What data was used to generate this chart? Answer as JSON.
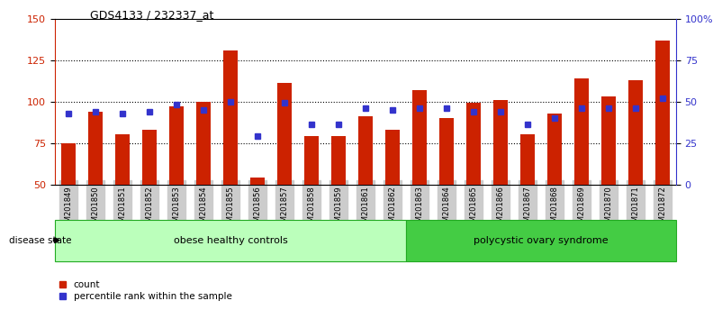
{
  "title": "GDS4133 / 232337_at",
  "samples": [
    "GSM201849",
    "GSM201850",
    "GSM201851",
    "GSM201852",
    "GSM201853",
    "GSM201854",
    "GSM201855",
    "GSM201856",
    "GSM201857",
    "GSM201858",
    "GSM201859",
    "GSM201861",
    "GSM201862",
    "GSM201863",
    "GSM201864",
    "GSM201865",
    "GSM201866",
    "GSM201867",
    "GSM201868",
    "GSM201869",
    "GSM201870",
    "GSM201871",
    "GSM201872"
  ],
  "counts": [
    75,
    94,
    80,
    83,
    97,
    100,
    131,
    54,
    111,
    79,
    79,
    91,
    83,
    107,
    90,
    99,
    101,
    80,
    93,
    114,
    103,
    113,
    137
  ],
  "percentiles": [
    43,
    44,
    43,
    44,
    48,
    45,
    50,
    29,
    49,
    36,
    36,
    46,
    45,
    46,
    46,
    44,
    44,
    36,
    40,
    46,
    46,
    46,
    52
  ],
  "group1_label": "obese healthy controls",
  "group2_label": "polycystic ovary syndrome",
  "group1_count": 13,
  "group2_count": 10,
  "ylim_left": [
    50,
    150
  ],
  "ylim_right": [
    0,
    100
  ],
  "yticks_left": [
    50,
    75,
    100,
    125,
    150
  ],
  "yticks_right": [
    0,
    25,
    50,
    75,
    100
  ],
  "ytick_labels_right": [
    "0",
    "25",
    "50",
    "75",
    "100%"
  ],
  "bar_color": "#cc2200",
  "percentile_color": "#3333cc",
  "bar_width": 0.55,
  "group1_color": "#bbffbb",
  "group2_color": "#44cc44",
  "background_color": "#ffffff",
  "tick_label_bg": "#cccccc",
  "grid_lines": [
    75,
    100,
    125
  ]
}
